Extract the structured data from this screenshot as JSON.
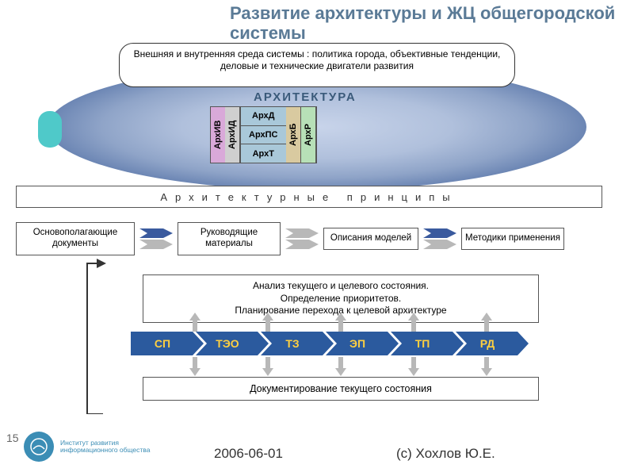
{
  "title": "Развитие архитектуры и ЖЦ общегородской системы",
  "env_box": "Внешняя и внутренняя среда системы : политика города, объективные тенденции, деловые и технические двигатели развития",
  "arch_heading": "АРХИТЕКТУРА",
  "arch_columns": {
    "col1": {
      "label": "АрхИВ",
      "bg": "#d9a9d9"
    },
    "col2": {
      "label": "АрхИД",
      "bg": "#cfcfcf"
    },
    "stack": {
      "bg": "#a9c8d9",
      "cells": [
        "АрхД",
        "АрхПС",
        "АрхТ"
      ]
    },
    "col3": {
      "label": "АрхБ",
      "bg": "#d9caa0"
    },
    "col4": {
      "label": "АрхР",
      "bg": "#b7e0b7"
    }
  },
  "principles": "Архитектурные   принципы",
  "doc_boxes": {
    "b1": "Основополагающие документы",
    "b2": "Руководящие материалы",
    "b3": "Описания моделей",
    "b4": "Методики применения"
  },
  "analysis": "Анализ текущего и целевого состояния.\nОпределение приоритетов.\nПланирование перехода к целевой архитектуре",
  "chevrons": {
    "items": [
      "СП",
      "ТЭО",
      "ТЗ",
      "ЭП",
      "ТП",
      "РД"
    ],
    "fill": "#2b5a9e",
    "text": "#ffd040"
  },
  "doc_state": "Документирование текущего состояния",
  "arrow_colors": {
    "blue": "#3a5a9e",
    "gray": "#b8b8b8"
  },
  "logo": {
    "line1": "Институт развития",
    "line2": "информационного общества"
  },
  "page_num": "15",
  "footer_date": "2006-06-01",
  "footer_author": "(с) Хохлов Ю.Е."
}
